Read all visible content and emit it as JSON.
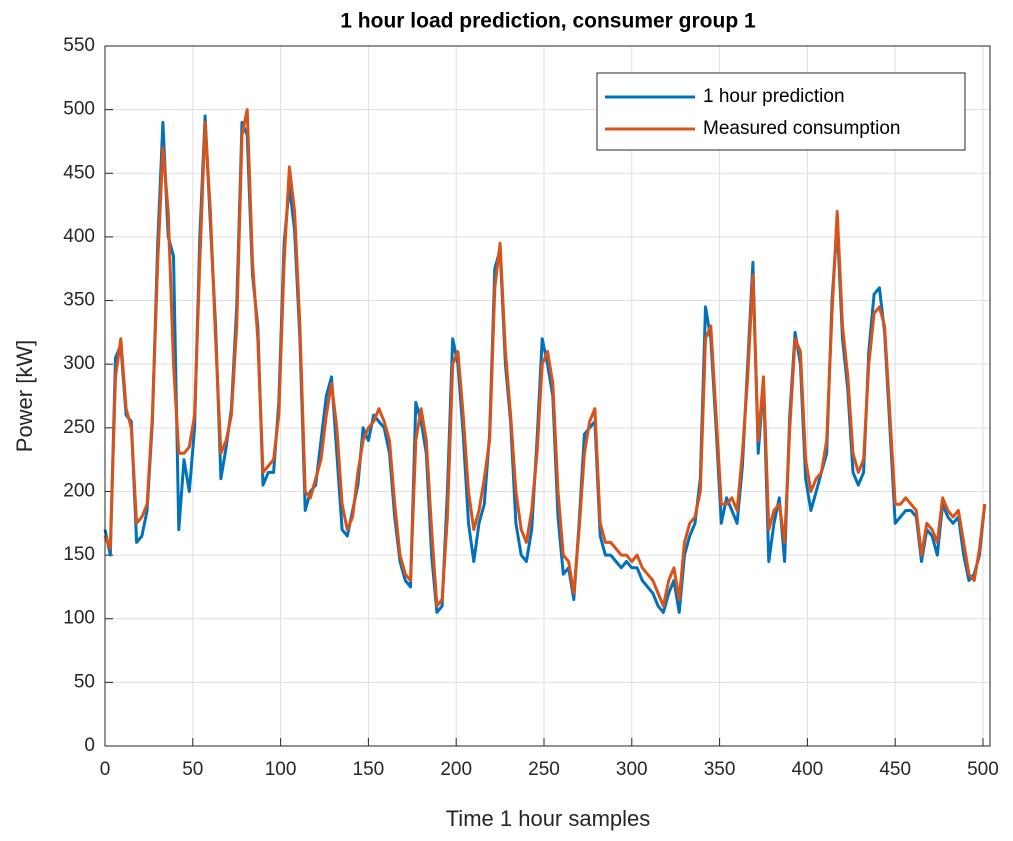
{
  "chart_data": {
    "type": "line",
    "title": "1 hour load prediction, consumer group 1",
    "xlabel": "Time 1 hour samples",
    "ylabel": "Power [kW]",
    "xlim": [
      0,
      504
    ],
    "ylim": [
      0,
      550
    ],
    "xticks": [
      0,
      50,
      100,
      150,
      200,
      250,
      300,
      350,
      400,
      450,
      500
    ],
    "yticks": [
      0,
      50,
      100,
      150,
      200,
      250,
      300,
      350,
      400,
      450,
      500,
      550
    ],
    "grid": true,
    "legend_loc": "upper right",
    "x": [
      0,
      3,
      6,
      9,
      12,
      15,
      18,
      21,
      24,
      27,
      30,
      33,
      36,
      39,
      42,
      45,
      48,
      51,
      54,
      57,
      60,
      63,
      66,
      69,
      72,
      75,
      78,
      81,
      84,
      87,
      90,
      93,
      96,
      99,
      102,
      105,
      108,
      111,
      114,
      117,
      120,
      123,
      126,
      129,
      132,
      135,
      138,
      141,
      144,
      147,
      150,
      153,
      156,
      159,
      162,
      165,
      168,
      171,
      174,
      177,
      180,
      183,
      186,
      189,
      192,
      195,
      198,
      201,
      204,
      207,
      210,
      213,
      216,
      219,
      222,
      225,
      228,
      231,
      234,
      237,
      240,
      243,
      246,
      249,
      252,
      255,
      258,
      261,
      264,
      267,
      270,
      273,
      276,
      279,
      282,
      285,
      288,
      291,
      294,
      297,
      300,
      303,
      306,
      309,
      312,
      315,
      318,
      321,
      324,
      327,
      330,
      333,
      336,
      339,
      342,
      345,
      348,
      351,
      354,
      357,
      360,
      363,
      366,
      369,
      372,
      375,
      378,
      381,
      384,
      387,
      390,
      393,
      396,
      399,
      402,
      405,
      408,
      411,
      414,
      417,
      420,
      423,
      426,
      429,
      432,
      435,
      438,
      441,
      444,
      447,
      450,
      453,
      456,
      459,
      462,
      465,
      468,
      471,
      474,
      477,
      480,
      483,
      486,
      489,
      492,
      495,
      498,
      501
    ],
    "series": [
      {
        "name": "1 hour prediction",
        "color": "#0072BD",
        "values": [
          170,
          150,
          305,
          315,
          260,
          255,
          160,
          165,
          185,
          255,
          395,
          490,
          400,
          385,
          170,
          225,
          200,
          250,
          400,
          495,
          410,
          330,
          210,
          235,
          265,
          345,
          490,
          480,
          370,
          330,
          205,
          215,
          215,
          270,
          395,
          440,
          405,
          320,
          185,
          200,
          205,
          240,
          275,
          290,
          230,
          170,
          165,
          185,
          205,
          250,
          240,
          260,
          255,
          250,
          230,
          180,
          145,
          130,
          125,
          270,
          255,
          230,
          150,
          105,
          110,
          200,
          320,
          300,
          245,
          175,
          145,
          175,
          190,
          245,
          375,
          390,
          300,
          255,
          175,
          150,
          145,
          170,
          240,
          320,
          300,
          275,
          180,
          135,
          140,
          115,
          175,
          245,
          250,
          255,
          165,
          150,
          150,
          145,
          140,
          145,
          140,
          140,
          130,
          125,
          120,
          110,
          105,
          120,
          130,
          105,
          150,
          165,
          175,
          210,
          345,
          320,
          250,
          175,
          195,
          185,
          175,
          220,
          300,
          380,
          230,
          285,
          145,
          175,
          195,
          145,
          260,
          325,
          300,
          210,
          185,
          200,
          215,
          230,
          350,
          410,
          320,
          280,
          215,
          205,
          215,
          310,
          355,
          360,
          325,
          250,
          175,
          180,
          185,
          185,
          180,
          145,
          170,
          165,
          150,
          190,
          180,
          175,
          180,
          150,
          130,
          135,
          150,
          190
        ]
      },
      {
        "name": "Measured consumption",
        "color": "#D95319",
        "values": [
          165,
          155,
          290,
          320,
          265,
          250,
          175,
          180,
          190,
          260,
          380,
          470,
          420,
          300,
          230,
          230,
          235,
          260,
          380,
          490,
          420,
          320,
          230,
          240,
          260,
          330,
          480,
          500,
          380,
          320,
          215,
          220,
          225,
          260,
          380,
          455,
          420,
          330,
          200,
          195,
          210,
          225,
          260,
          285,
          250,
          190,
          170,
          180,
          215,
          240,
          250,
          255,
          265,
          255,
          240,
          190,
          150,
          135,
          130,
          240,
          265,
          240,
          170,
          110,
          115,
          180,
          300,
          310,
          260,
          200,
          170,
          185,
          210,
          240,
          360,
          395,
          310,
          260,
          200,
          170,
          160,
          185,
          230,
          300,
          310,
          285,
          200,
          150,
          145,
          120,
          170,
          230,
          255,
          265,
          175,
          160,
          160,
          155,
          150,
          150,
          145,
          150,
          140,
          135,
          130,
          120,
          110,
          130,
          140,
          115,
          160,
          175,
          180,
          200,
          320,
          330,
          260,
          190,
          190,
          195,
          185,
          230,
          290,
          370,
          240,
          290,
          170,
          185,
          190,
          160,
          250,
          320,
          310,
          225,
          200,
          210,
          215,
          240,
          340,
          420,
          330,
          290,
          230,
          215,
          225,
          300,
          340,
          345,
          330,
          260,
          190,
          190,
          195,
          190,
          185,
          150,
          175,
          170,
          160,
          195,
          185,
          180,
          185,
          160,
          135,
          130,
          155,
          190
        ]
      }
    ]
  }
}
